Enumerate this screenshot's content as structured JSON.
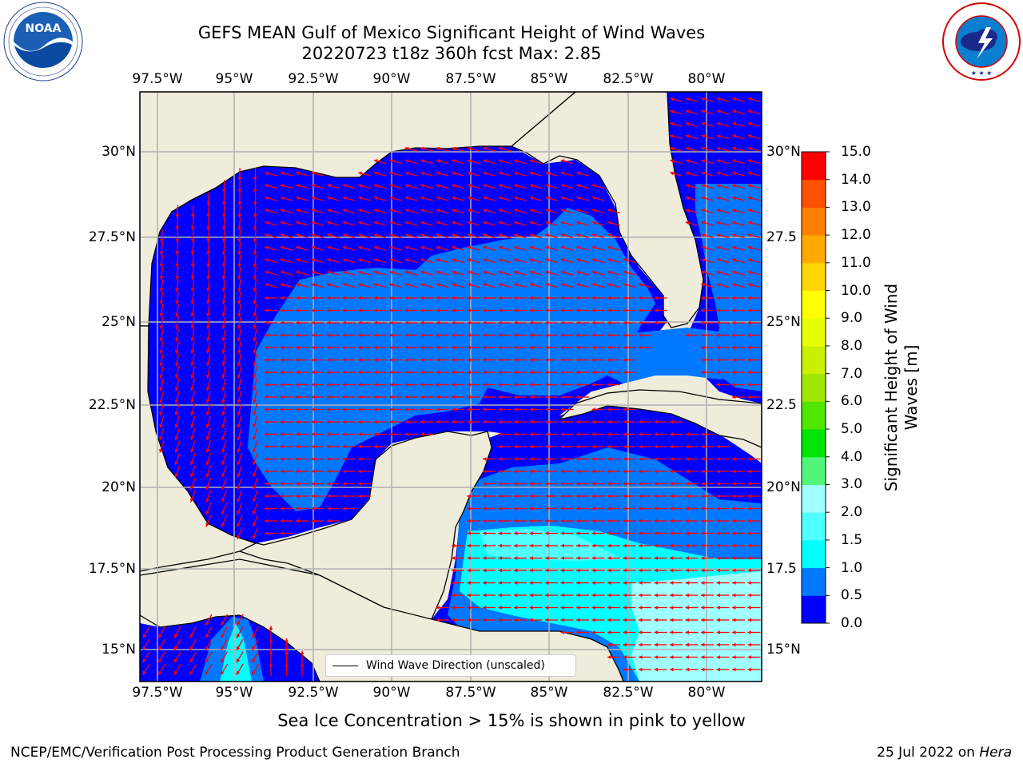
{
  "title_line1": "GEFS MEAN Gulf of Mexico Significant Height of Wind Waves",
  "title_line2": "20220723 t18z 360h fcst   Max: 2.85",
  "subtitle": "Sea Ice Concentration > 15% is shown in pink to yellow",
  "footer_left": "NCEP/EMC/Verification Post Processing Product Generation Branch",
  "footer_right_date": "25 Jul 2022 on ",
  "footer_right_host": "Hera",
  "legend_label": "Wind Wave Direction (unscaled)",
  "noaa_logo": {
    "text": "NOAA",
    "ring": "NATIONAL OCEANIC AND ATMOSPHERIC ADMINISTRATION · U.S. DEPARTMENT OF COMMERCE"
  },
  "nws_logo": {
    "ring": "NATIONAL WEATHER SERVICE"
  },
  "map": {
    "lon_ticks": [
      "97.5°W",
      "95°W",
      "92.5°W",
      "90°W",
      "87.5°W",
      "85°W",
      "82.5°W",
      "80°W"
    ],
    "lat_ticks_left": [
      "30°N",
      "27.5°N",
      "25°N",
      "22.5°N",
      "20°N",
      "17.5°N",
      "15°N"
    ],
    "lat_ticks_right": [
      "30°N",
      "27.5",
      "25°N",
      "22.5",
      "20°N",
      "17.5",
      "15°N"
    ],
    "land_color": "#efecdc",
    "arrow_color": "#ff0000",
    "grid_color": "#b0b0b0"
  },
  "colorbar": {
    "label": "Significant Height of Wind Waves [m]",
    "ticks": [
      "15.0",
      "14.0",
      "13.0",
      "12.0",
      "11.0",
      "10.0",
      "9.0",
      "8.0",
      "7.0",
      "6.0",
      "5.0",
      "4.0",
      "3.0",
      "2.0",
      "1.5",
      "1.0",
      "0.5",
      "0.0"
    ],
    "colors_bottom_to_top": [
      "#0000ff",
      "#0078ff",
      "#00ffff",
      "#50ffff",
      "#a0ffff",
      "#50f57a",
      "#00e600",
      "#50e600",
      "#a0e600",
      "#c8f000",
      "#e6ff00",
      "#ffff00",
      "#ffd700",
      "#ffaa00",
      "#ff8000",
      "#ff5000",
      "#ff0000"
    ]
  },
  "wave_field": {
    "max_height_m": 2.85,
    "regions": [
      {
        "name": "northern and western Gulf",
        "height_band": "0.0–0.5"
      },
      {
        "name": "central Gulf",
        "height_band": "0.5–1.0"
      },
      {
        "name": "central Caribbean",
        "height_band": "1.5–2.0"
      },
      {
        "name": "southeastern Caribbean",
        "height_band": "2.0–3.0"
      }
    ]
  }
}
